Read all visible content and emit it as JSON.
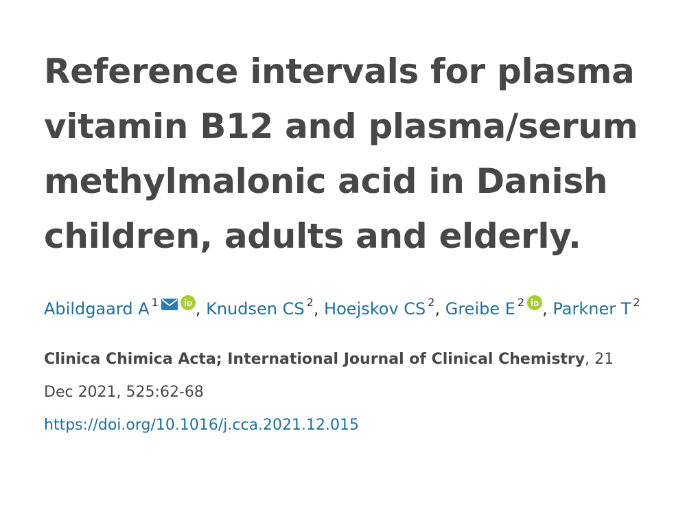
{
  "article": {
    "title": "Reference intervals for plasma vitamin B12 and plasma/serum methylmalonic acid in Danish children, adults and elderly.",
    "authors": [
      {
        "name": "Abildgaard A",
        "affiliation": "1",
        "has_email": true,
        "has_orcid": true
      },
      {
        "name": "Knudsen CS",
        "affiliation": "2",
        "has_email": false,
        "has_orcid": false
      },
      {
        "name": "Hoejskov CS",
        "affiliation": "2",
        "has_email": false,
        "has_orcid": false
      },
      {
        "name": "Greibe E",
        "affiliation": "2",
        "has_email": false,
        "has_orcid": true
      },
      {
        "name": "Parkner T",
        "affiliation": "2",
        "has_email": false,
        "has_orcid": false
      }
    ],
    "separator": ",",
    "journal": "Clinica Chimica Acta; International Journal of Clinical Chemistry",
    "publication_details": ", 21 Dec 2021, 525:62-68",
    "doi": "https://doi.org/10.1016/j.cca.2021.12.015"
  },
  "icons": {
    "email": "envelope-icon",
    "orcid": "orcid-icon"
  },
  "colors": {
    "link": "#1f6f9f",
    "title": "#474747",
    "orcid": "#a6ce39",
    "email_icon": "#2e7cb0"
  }
}
